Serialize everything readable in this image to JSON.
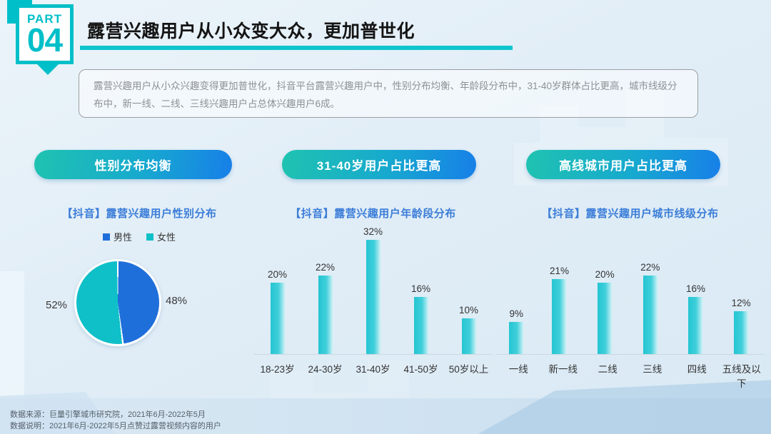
{
  "badge": {
    "part_label": "PART",
    "part_number": "04"
  },
  "header": {
    "title": "露营兴趣用户从小众变大众，更加普世化"
  },
  "summary": {
    "text": "露营兴趣用户从小众兴趣变得更加普世化，抖音平台露营兴趣用户中，性别分布均衡、年龄段分布中，31-40岁群体占比更高，城市线级分布中，新一线、二线、三线兴趣用户占总体兴趣用户6成。"
  },
  "pills": [
    {
      "label": "性别分布均衡"
    },
    {
      "label": "31-40岁用户占比更高"
    },
    {
      "label": "高线城市用户占比更高"
    }
  ],
  "colors": {
    "accent_teal": "#00bfc8",
    "title_underline": "#0fc5cd",
    "pill_gradient_start": "#1fc3b0",
    "pill_gradient_end": "#177fe8",
    "chart_title_blue": "#3c7ed8",
    "pie_male_blue": "#1f6fdb",
    "pie_female_teal": "#0fc0c8",
    "bar_teal_dark": "#25c5d2",
    "bar_teal_light": "#cdf1f5"
  },
  "chart_data": [
    {
      "type": "pie",
      "title": "【抖音】露营兴趣用户性别分布",
      "legend": [
        "男性",
        "女性"
      ],
      "legend_position": "top",
      "labels": [
        "男性",
        "女性"
      ],
      "values": [
        48,
        52
      ],
      "value_labels": [
        "48%",
        "52%"
      ],
      "colors": [
        "#1f6fdb",
        "#0fc0c8"
      ]
    },
    {
      "type": "bar",
      "title": "【抖音】露营兴趣用户年龄段分布",
      "categories": [
        "18-23岁",
        "24-30岁",
        "31-40岁",
        "41-50岁",
        "50岁以上"
      ],
      "values": [
        20,
        22,
        32,
        16,
        10
      ],
      "value_labels": [
        "20%",
        "22%",
        "32%",
        "16%",
        "10%"
      ],
      "ylim": [
        0,
        35
      ],
      "grid": false
    },
    {
      "type": "bar",
      "title": "【抖音】露营兴趣用户城市线级分布",
      "categories": [
        "一线",
        "新一线",
        "二线",
        "三线",
        "四线",
        "五线及以下"
      ],
      "values": [
        9,
        21,
        20,
        22,
        16,
        12
      ],
      "value_labels": [
        "9%",
        "21%",
        "20%",
        "22%",
        "16%",
        "12%"
      ],
      "ylim": [
        0,
        35
      ],
      "grid": false
    }
  ],
  "footer": {
    "line1": "数据来源：巨量引擎城市研究院，2021年6月-2022年5月",
    "line2": "数据说明：2021年6月-2022年5月点赞过露营视频内容的用户"
  }
}
